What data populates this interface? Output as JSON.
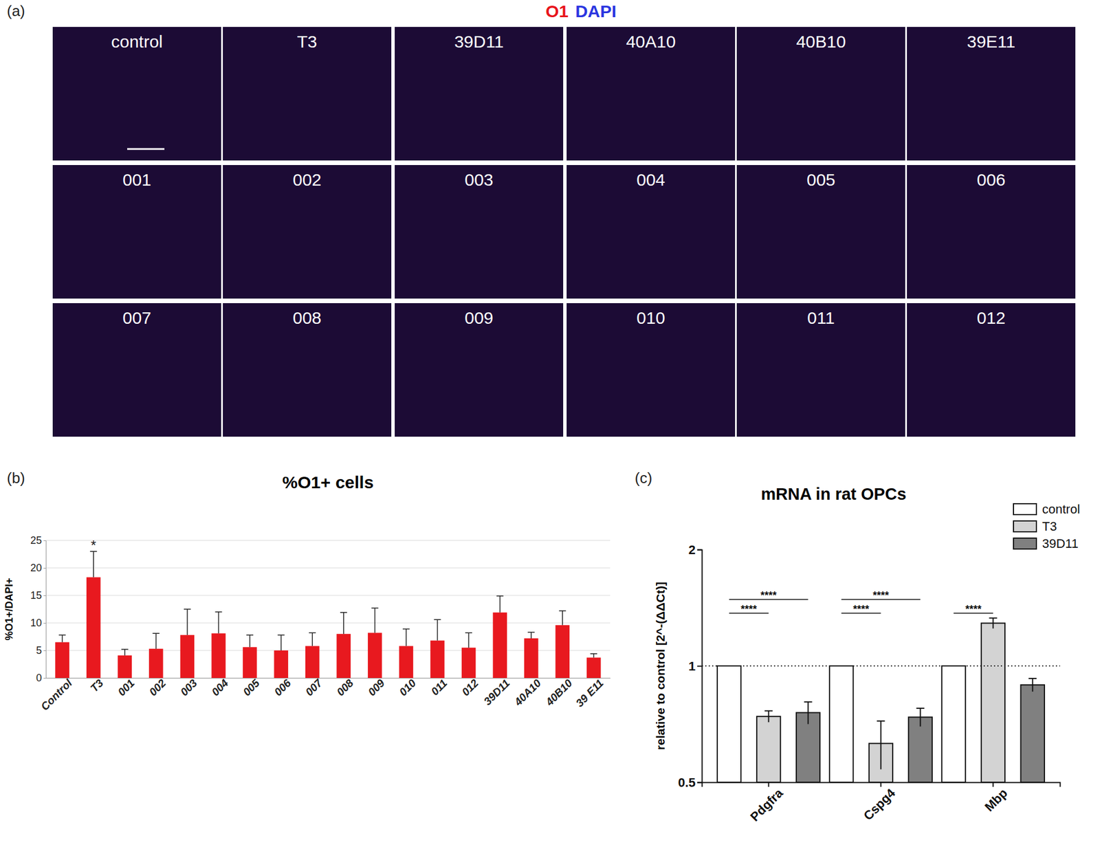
{
  "panel_labels": [
    "(a)",
    "(b)",
    "(c)"
  ],
  "image_panel": {
    "heading": [
      {
        "text": "O1",
        "color": "#e8141b"
      },
      {
        "text": "DAPI",
        "color": "#2a35e0"
      }
    ],
    "tiles": [
      "control",
      "T3",
      "39D11",
      "40A10",
      "40B10",
      "39E11",
      "001",
      "002",
      "003",
      "004",
      "005",
      "006",
      "007",
      "008",
      "009",
      "010",
      "011",
      "012"
    ]
  },
  "chart_data": [
    {
      "type": "bar",
      "title": "%O1+ cells",
      "y_label": "%O1+/DAPI+",
      "categories": [
        "Control",
        "T3",
        "001",
        "002",
        "003",
        "004",
        "005",
        "006",
        "007",
        "008",
        "009",
        "010",
        "011",
        "012",
        "39D11",
        "40A10",
        "40B10",
        "39 E11"
      ],
      "values": [
        6.5,
        18.3,
        4.1,
        5.3,
        7.8,
        8.1,
        5.6,
        5.0,
        5.8,
        8.0,
        8.2,
        5.8,
        6.8,
        5.5,
        11.9,
        7.2,
        9.6,
        3.7
      ],
      "errors": [
        1.3,
        4.7,
        1.1,
        2.8,
        4.7,
        3.9,
        2.2,
        2.8,
        2.4,
        3.9,
        4.5,
        3.1,
        3.8,
        2.7,
        3.0,
        1.1,
        2.6,
        0.7
      ],
      "color": "#e8191f",
      "ylim": [
        0,
        25
      ],
      "yticks": [
        0,
        5,
        10,
        15,
        20,
        25
      ],
      "grid": true,
      "annotations": [
        {
          "text": "*",
          "category": "T3"
        }
      ]
    },
    {
      "type": "bar",
      "title": "mRNA in rat OPCs",
      "y_label": "relative to control  [2^-(ΔΔCt)]",
      "categories": [
        "Pdgfra",
        "Cspg4",
        "Mbp"
      ],
      "series": [
        {
          "name": "control",
          "color": "#ffffff",
          "values": [
            1,
            1,
            1
          ],
          "errors": [
            0,
            0,
            0
          ]
        },
        {
          "name": "T3",
          "color": "#d3d3d3",
          "values": [
            0.74,
            0.63,
            1.29
          ],
          "errors": [
            0.025,
            0.09,
            0.04
          ]
        },
        {
          "name": "39D11",
          "color": "#808080",
          "values": [
            0.757,
            0.737,
            0.893
          ],
          "errors": [
            0.05,
            0.04,
            0.035
          ]
        }
      ],
      "log": "y",
      "ylim": [
        0.5,
        2
      ],
      "yticks": [
        0.5,
        1,
        2
      ],
      "grid": false,
      "legend": "top-right",
      "reference_line": 1,
      "annotations": [
        {
          "text": "****",
          "category": "Pdgfra",
          "series": [
            "control",
            "T3"
          ]
        },
        {
          "text": "****",
          "category": "Pdgfra",
          "series": [
            "control",
            "39D11"
          ]
        },
        {
          "text": "****",
          "category": "Cspg4",
          "series": [
            "control",
            "T3"
          ]
        },
        {
          "text": "****",
          "category": "Cspg4",
          "series": [
            "control",
            "39D11"
          ]
        },
        {
          "text": "****",
          "category": "Mbp",
          "series": [
            "control",
            "T3"
          ]
        }
      ]
    }
  ]
}
